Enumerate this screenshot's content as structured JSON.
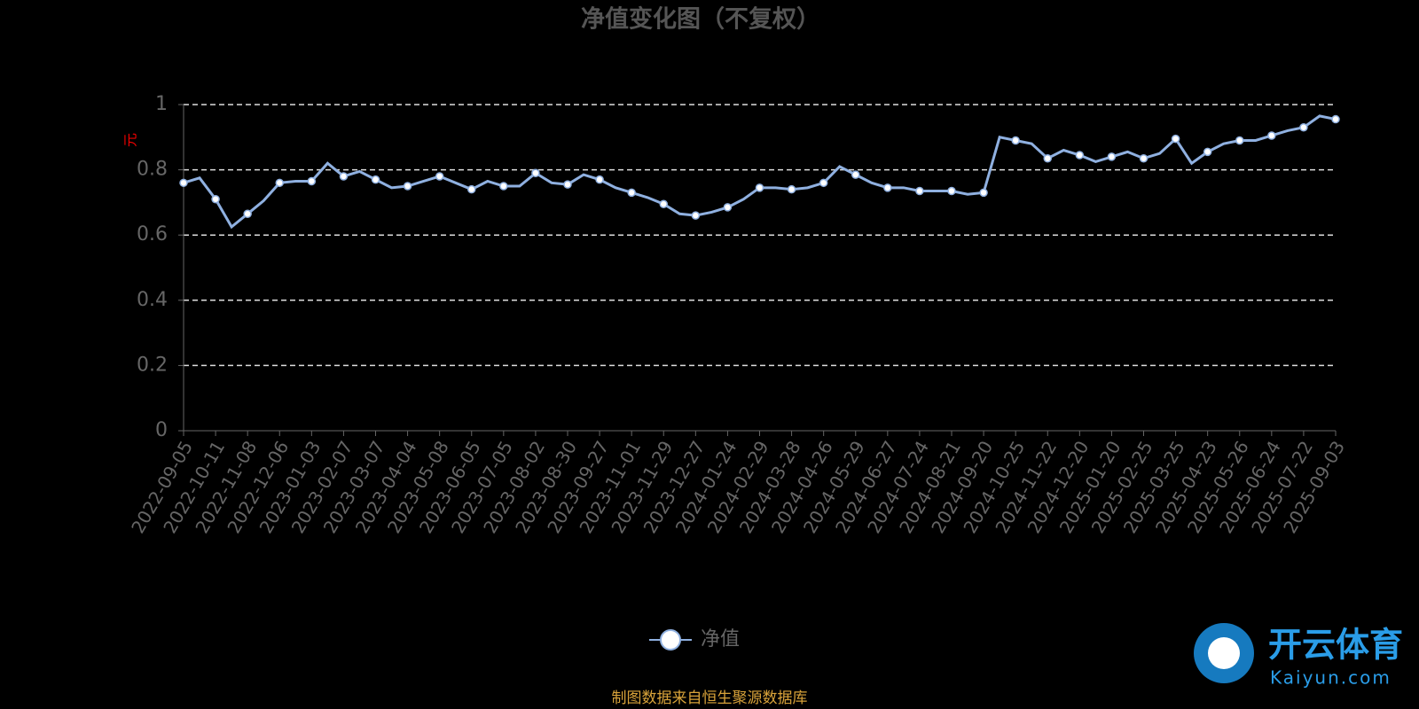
{
  "chart_data": {
    "type": "line",
    "title": "净值变化图（不复权）",
    "y_label": "元",
    "source": "制图数据来自恒生聚源数据库",
    "categories": [
      "2022-09-05",
      null,
      "2022-10-11",
      null,
      "2022-11-08",
      null,
      "2022-12-06",
      null,
      "2023-01-03",
      null,
      "2023-02-07",
      null,
      "2023-03-07",
      null,
      "2023-04-04",
      null,
      "2023-05-08",
      null,
      "2023-06-05",
      null,
      "2023-07-05",
      null,
      "2023-08-02",
      null,
      "2023-08-30",
      null,
      "2023-09-27",
      null,
      "2023-11-01",
      null,
      "2023-11-29",
      null,
      "2023-12-27",
      null,
      "2024-01-24",
      null,
      "2024-02-29",
      null,
      "2024-03-28",
      null,
      "2024-04-26",
      null,
      "2024-05-29",
      null,
      "2024-06-27",
      null,
      "2024-07-24",
      null,
      "2024-08-21",
      null,
      "2024-09-20",
      null,
      "2024-10-25",
      null,
      "2024-11-22",
      null,
      "2024-12-20",
      null,
      "2025-01-20",
      null,
      "2025-02-25",
      null,
      "2025-03-25",
      null,
      "2025-04-23",
      null,
      "2025-05-26",
      null,
      "2025-06-24",
      null,
      "2025-07-22",
      null,
      "2025-09-03"
    ],
    "series": [
      {
        "name": "净值",
        "color": "#8fb0e0",
        "values": [
          0.76,
          0.775,
          0.71,
          0.625,
          0.665,
          0.705,
          0.76,
          0.765,
          0.765,
          0.82,
          0.78,
          0.795,
          0.77,
          0.745,
          0.75,
          0.765,
          0.78,
          0.76,
          0.74,
          0.765,
          0.75,
          0.75,
          0.79,
          0.76,
          0.755,
          0.785,
          0.77,
          0.745,
          0.73,
          0.715,
          0.695,
          0.665,
          0.66,
          0.67,
          0.685,
          0.71,
          0.745,
          0.745,
          0.74,
          0.745,
          0.76,
          0.81,
          0.785,
          0.76,
          0.745,
          0.745,
          0.735,
          0.735,
          0.735,
          0.725,
          0.73,
          0.9,
          0.89,
          0.88,
          0.835,
          0.86,
          0.845,
          0.825,
          0.84,
          0.855,
          0.835,
          0.85,
          0.895,
          0.82,
          0.855,
          0.88,
          0.89,
          0.89,
          0.905,
          0.92,
          0.93,
          0.965,
          0.955
        ]
      }
    ],
    "ylim": [
      0,
      1
    ],
    "yticks": [
      0,
      0.2,
      0.4,
      0.6,
      0.8,
      1
    ],
    "grid": true
  },
  "watermark": {
    "brand": "开云体育",
    "url": "Kaiyun.com"
  }
}
